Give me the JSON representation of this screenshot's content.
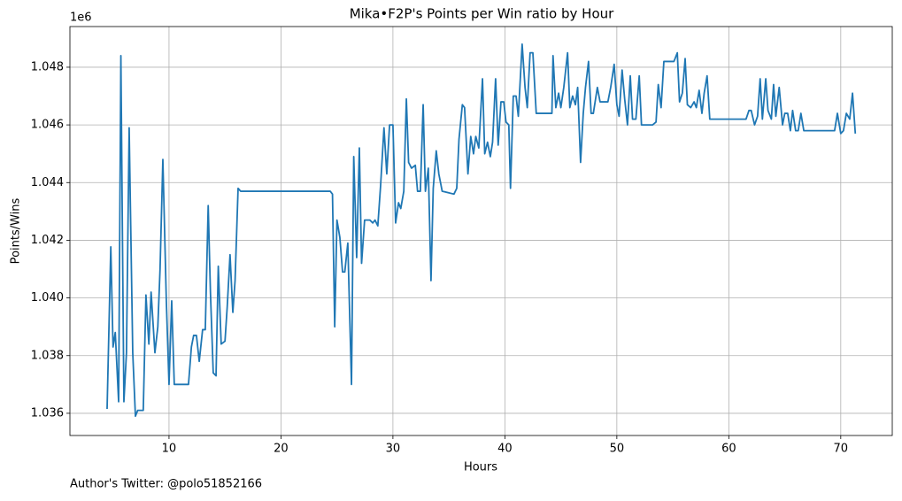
{
  "chart_data": {
    "type": "line",
    "title": "Mika•F2P's Points per Win ratio by Hour",
    "xlabel": "Hours",
    "ylabel": "Points/Wins",
    "y_offset_label": "1e6",
    "annotation": "Author's Twitter: @polo51852166",
    "color": "#1f77b4",
    "grid": true,
    "xlim": [
      1.15,
      74.6
    ],
    "ylim": [
      1.03523,
      1.04941
    ],
    "xticks": [
      10,
      20,
      30,
      40,
      50,
      60,
      70
    ],
    "yticks": [
      1.036,
      1.038,
      {
        "value": 1.04,
        "label": "1.040"
      },
      1.042,
      1.044,
      1.046,
      1.048
    ],
    "x": [
      4.47,
      4.8,
      5.0,
      5.2,
      5.5,
      5.7,
      5.97,
      6.2,
      6.44,
      6.76,
      7.0,
      7.2,
      7.7,
      7.94,
      8.2,
      8.4,
      8.74,
      9.0,
      9.2,
      9.45,
      9.76,
      10.0,
      10.24,
      10.47,
      11.74,
      12.0,
      12.2,
      12.45,
      12.7,
      13.0,
      13.24,
      13.5,
      13.7,
      13.95,
      14.2,
      14.4,
      14.66,
      15.0,
      15.2,
      15.45,
      15.7,
      15.9,
      16.17,
      16.4,
      24.4,
      24.6,
      24.8,
      25.0,
      25.26,
      25.5,
      25.7,
      25.97,
      26.3,
      26.5,
      26.76,
      27.0,
      27.2,
      27.47,
      27.94,
      28.2,
      28.4,
      28.65,
      28.9,
      29.2,
      29.45,
      29.7,
      30.0,
      30.24,
      30.5,
      30.7,
      30.97,
      31.2,
      31.4,
      31.66,
      32.0,
      32.2,
      32.45,
      32.7,
      32.9,
      33.16,
      33.4,
      33.6,
      33.87,
      34.1,
      34.4,
      35.45,
      35.7,
      35.9,
      36.2,
      36.4,
      36.7,
      36.95,
      37.2,
      37.4,
      37.67,
      38.0,
      38.2,
      38.45,
      38.7,
      38.9,
      39.17,
      39.4,
      39.65,
      39.9,
      40.1,
      40.35,
      40.5,
      40.75,
      41.0,
      41.2,
      41.54,
      41.8,
      42.0,
      42.25,
      42.5,
      42.8,
      44.2,
      44.3,
      44.55,
      44.8,
      45.0,
      45.26,
      45.6,
      45.8,
      46.05,
      46.3,
      46.5,
      46.76,
      47.0,
      47.2,
      47.47,
      47.7,
      47.9,
      48.26,
      48.5,
      49.2,
      49.45,
      49.76,
      50.0,
      50.2,
      50.47,
      50.7,
      50.95,
      51.2,
      51.4,
      51.7,
      52.0,
      52.2,
      53.2,
      53.5,
      53.7,
      53.95,
      54.2,
      55.1,
      55.4,
      55.6,
      55.85,
      56.1,
      56.3,
      56.6,
      56.9,
      57.1,
      57.35,
      57.6,
      57.8,
      58.06,
      58.3,
      61.54,
      61.8,
      62.0,
      62.3,
      62.57,
      62.8,
      63.0,
      63.3,
      63.5,
      63.8,
      64.0,
      64.2,
      64.5,
      64.8,
      65.0,
      65.26,
      65.5,
      65.7,
      65.97,
      66.2,
      66.44,
      66.7,
      69.45,
      69.7,
      70.0,
      70.24,
      70.5,
      70.8,
      71.05,
      71.3
    ],
    "values": [
      1.03615,
      1.04177,
      1.0383,
      1.0388,
      1.0364,
      1.0484,
      1.0364,
      1.0381,
      1.0459,
      1.0381,
      1.0359,
      1.0361,
      1.0361,
      1.0401,
      1.0384,
      1.0402,
      1.0381,
      1.039,
      1.041,
      1.0448,
      1.0399,
      1.037,
      1.0399,
      1.037,
      1.037,
      1.0383,
      1.0387,
      1.0387,
      1.0378,
      1.0389,
      1.0389,
      1.0432,
      1.0402,
      1.0374,
      1.0373,
      1.0411,
      1.0384,
      1.0385,
      1.0397,
      1.0415,
      1.0395,
      1.0406,
      1.0438,
      1.0437,
      1.0437,
      1.0436,
      1.039,
      1.0427,
      1.0421,
      1.0409,
      1.0409,
      1.0419,
      1.037,
      1.0449,
      1.0414,
      1.0452,
      1.0412,
      1.0427,
      1.0427,
      1.0426,
      1.0427,
      1.0425,
      1.0439,
      1.0459,
      1.0443,
      1.046,
      1.046,
      1.0426,
      1.0433,
      1.0431,
      1.0437,
      1.0469,
      1.0447,
      1.0445,
      1.0446,
      1.0437,
      1.0437,
      1.0467,
      1.0437,
      1.0445,
      1.0406,
      1.0438,
      1.0451,
      1.0443,
      1.0437,
      1.0436,
      1.0438,
      1.0455,
      1.0467,
      1.0466,
      1.0443,
      1.0456,
      1.045,
      1.0456,
      1.0452,
      1.0476,
      1.045,
      1.0454,
      1.0449,
      1.0454,
      1.0476,
      1.0453,
      1.0468,
      1.0468,
      1.0461,
      1.046,
      1.0438,
      1.047,
      1.047,
      1.0463,
      1.0488,
      1.0473,
      1.0466,
      1.0485,
      1.0485,
      1.0464,
      1.0464,
      1.0484,
      1.0466,
      1.0471,
      1.0466,
      1.0473,
      1.0485,
      1.0466,
      1.047,
      1.0467,
      1.0473,
      1.0447,
      1.0464,
      1.0473,
      1.0482,
      1.0464,
      1.0464,
      1.0473,
      1.0468,
      1.0468,
      1.0473,
      1.0481,
      1.0467,
      1.0463,
      1.0479,
      1.0469,
      1.046,
      1.0477,
      1.0462,
      1.0462,
      1.0477,
      1.046,
      1.046,
      1.0461,
      1.0474,
      1.0466,
      1.0482,
      1.0482,
      1.0485,
      1.0468,
      1.0471,
      1.0483,
      1.0467,
      1.0466,
      1.0468,
      1.0466,
      1.0472,
      1.0464,
      1.0471,
      1.0477,
      1.0462,
      1.0462,
      1.0465,
      1.0465,
      1.046,
      1.0463,
      1.0476,
      1.0462,
      1.0476,
      1.0465,
      1.0462,
      1.0474,
      1.0463,
      1.0473,
      1.046,
      1.0464,
      1.0464,
      1.0458,
      1.0465,
      1.0458,
      1.0458,
      1.0464,
      1.0458,
      1.0458,
      1.0464,
      1.0457,
      1.0458,
      1.0464,
      1.0462,
      1.0471,
      1.0457
    ]
  }
}
